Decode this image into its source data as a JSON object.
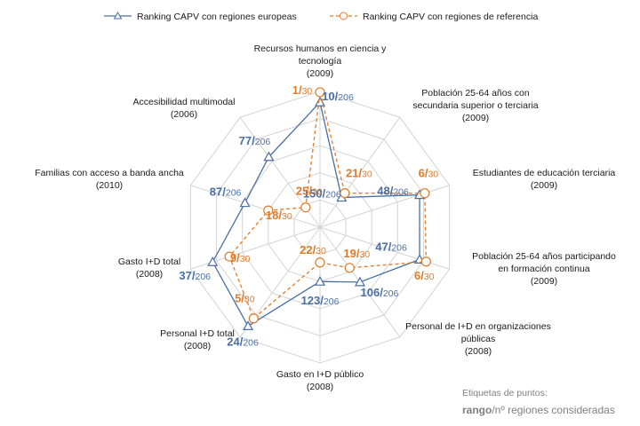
{
  "chart_data": {
    "type": "radar",
    "title": "",
    "scale": {
      "rings": 5,
      "max": 5,
      "note": "outer ring = best position (rank 1)"
    },
    "axes": [
      {
        "lines": [
          "Recursos humanos en ciencia y",
          "tecnología",
          "(2009)"
        ]
      },
      {
        "lines": [
          "Población 25-64 años con",
          "secundaria superior o terciaria",
          "(2009)"
        ]
      },
      {
        "lines": [
          "Estudiantes de educación terciaria",
          "(2009)"
        ]
      },
      {
        "lines": [
          "Población 25-64 años participando",
          "en formación continua",
          "(2009)"
        ]
      },
      {
        "lines": [
          "Personal de I+D en organizaciones",
          "públicas",
          "(2008)"
        ]
      },
      {
        "lines": [
          "Gasto en I+D  público",
          "(2008)"
        ]
      },
      {
        "lines": [
          "Personal I+D total",
          "(2008)"
        ]
      },
      {
        "lines": [
          "Gasto I+D total",
          "(2008)"
        ]
      },
      {
        "lines": [
          "Familias con acceso a banda ancha",
          "(2010)"
        ]
      },
      {
        "lines": [
          "Accesibilidad multimodal",
          "(2006)"
        ]
      }
    ],
    "series": [
      {
        "name": "Ranking CAPV con regiones europeas",
        "color": "#4a6fa5",
        "marker": "triangle",
        "dash": "solid",
        "values": [
          4.6,
          1.35,
          3.85,
          3.85,
          2.5,
          2.0,
          4.5,
          4.15,
          2.9,
          3.2
        ],
        "ranks": [
          "10",
          "150",
          "48",
          "47",
          "106",
          "123",
          "24",
          "37",
          "87",
          "77"
        ],
        "total": "206"
      },
      {
        "name": "Ranking CAPV con regiones de referencia",
        "color": "#e07b28",
        "marker": "circle",
        "dash": "dashed",
        "values": [
          4.97,
          1.55,
          4.05,
          4.1,
          1.85,
          1.3,
          4.15,
          3.5,
          2.0,
          0.9
        ],
        "ranks": [
          "1",
          "21",
          "6",
          "6",
          "19",
          "22",
          "5",
          "9",
          "18",
          "25"
        ],
        "total": "30"
      }
    ],
    "legend": {
      "position": "top"
    }
  },
  "footnote": {
    "line1": "Etiquetas de puntos:",
    "line2_bold": "rango",
    "line2_rest": "/nº regiones consideradas"
  }
}
